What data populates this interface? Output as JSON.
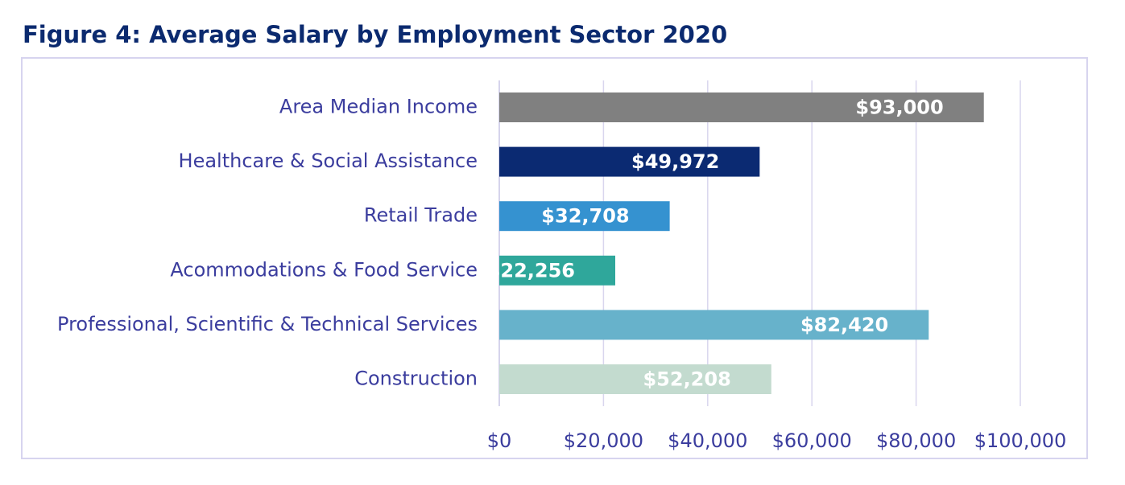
{
  "title": "Figure 4: Average Salary by Employment Sector 2020",
  "chart_data": {
    "type": "bar",
    "orientation": "horizontal",
    "categories": [
      "Area Median Income",
      "Healthcare & Social Assistance",
      "Retail Trade",
      "Acommodations & Food Service",
      "Professional, Scientific & Technical Services",
      "Construction"
    ],
    "values": [
      93000,
      49972,
      32708,
      22256,
      82420,
      52208
    ],
    "data_labels": [
      "$93,000",
      "$49,972",
      "$32,708",
      "$22,256",
      "$82,420",
      "$52,208"
    ],
    "colors": [
      "#808080",
      "#0b2a72",
      "#3592d0",
      "#2fa79b",
      "#67b2cb",
      "#c3dbcf"
    ],
    "xlim": [
      0,
      100000
    ],
    "x_ticks": [
      0,
      20000,
      40000,
      60000,
      80000,
      100000
    ],
    "x_tick_labels": [
      "$0",
      "$20,000",
      "$40,000",
      "$60,000",
      "$80,000",
      "$100,000"
    ],
    "grid": "vertical",
    "legend": "none",
    "xlabel": "",
    "ylabel": ""
  }
}
